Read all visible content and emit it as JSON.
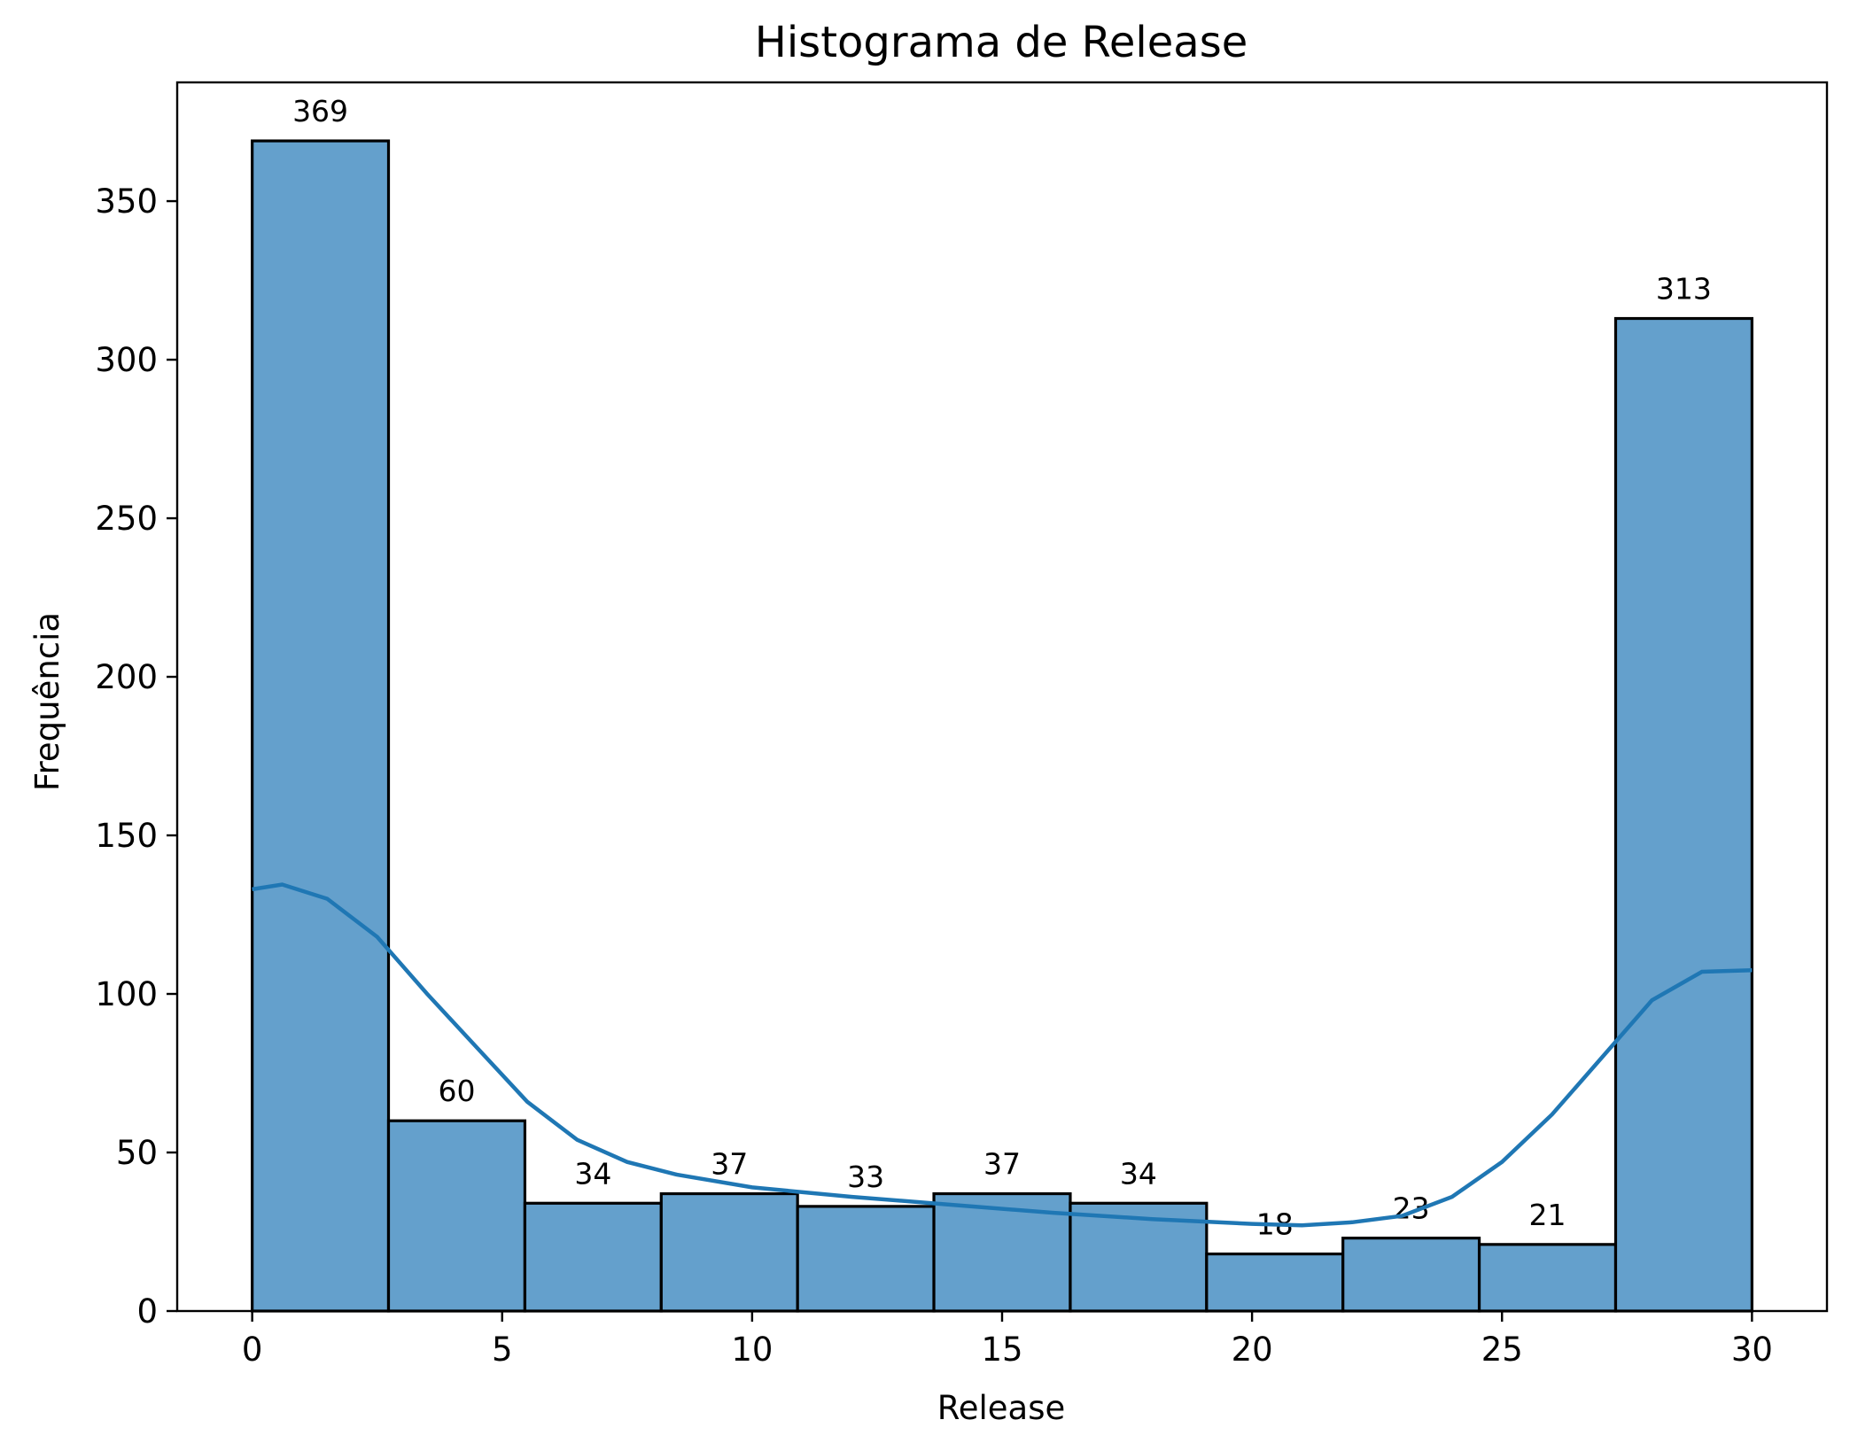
{
  "chart_data": {
    "type": "bar",
    "title": "Histograma de Release",
    "xlabel": "Release",
    "ylabel": "Frequência",
    "xlim": [
      -1.5,
      31.5
    ],
    "ylim": [
      0,
      387.45
    ],
    "xticks": [
      0,
      5,
      10,
      15,
      20,
      25,
      30
    ],
    "yticks": [
      0,
      50,
      100,
      150,
      200,
      250,
      300,
      350
    ],
    "bins": [
      {
        "x0": 0.0,
        "x1": 2.727,
        "value": 369
      },
      {
        "x0": 2.727,
        "x1": 5.455,
        "value": 60
      },
      {
        "x0": 5.455,
        "x1": 8.182,
        "value": 34
      },
      {
        "x0": 8.182,
        "x1": 10.909,
        "value": 37
      },
      {
        "x0": 10.909,
        "x1": 13.636,
        "value": 33
      },
      {
        "x0": 13.636,
        "x1": 16.364,
        "value": 37
      },
      {
        "x0": 16.364,
        "x1": 19.091,
        "value": 34
      },
      {
        "x0": 19.091,
        "x1": 21.818,
        "value": 18
      },
      {
        "x0": 21.818,
        "x1": 24.545,
        "value": 23
      },
      {
        "x0": 24.545,
        "x1": 27.273,
        "value": 21
      },
      {
        "x0": 27.273,
        "x1": 30.0,
        "value": 313
      }
    ],
    "bar_color": "#64a0cc",
    "kde": {
      "color": "#1f77b4",
      "x": [
        0,
        0.6,
        1.5,
        2.5,
        3.5,
        4.5,
        5.5,
        6.5,
        7.5,
        8.5,
        10,
        12,
        14,
        16,
        18,
        20,
        21,
        22,
        23,
        24,
        25,
        26,
        27,
        28,
        29,
        30
      ],
      "y": [
        133,
        134.5,
        130,
        118,
        100,
        83,
        66,
        54,
        47,
        43,
        39,
        36,
        33.5,
        31,
        29,
        27.5,
        27,
        28,
        30,
        36,
        47,
        62,
        80,
        98,
        107,
        107.5
      ]
    },
    "grid": false,
    "legend": "none"
  }
}
